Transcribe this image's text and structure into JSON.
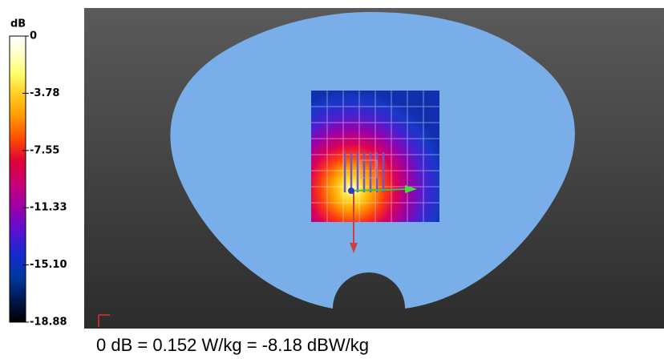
{
  "colorbar": {
    "unit": "dB",
    "labels": [
      "0",
      "-3.78",
      "-7.55",
      "-11.33",
      "-15.10",
      "-18.88"
    ]
  },
  "caption": "0 dB = 0.152 W/kg = -8.18 dBW/kg"
}
